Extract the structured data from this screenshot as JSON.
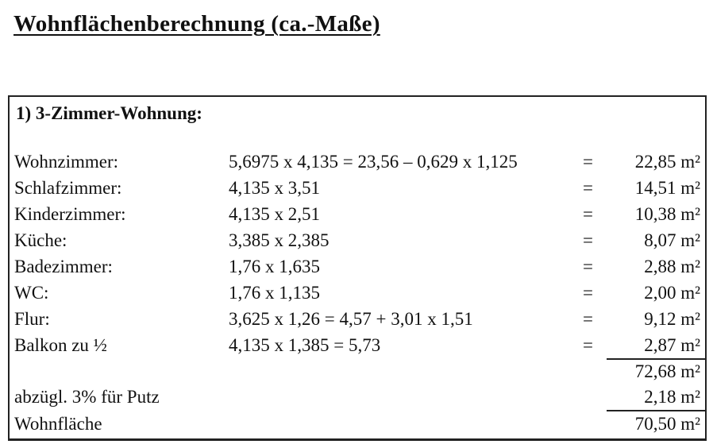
{
  "title": "Wohnflächenberechnung (ca.-Maße)",
  "section": {
    "heading": "1) 3-Zimmer-Wohnung:",
    "unit": "m²",
    "rooms": [
      {
        "label": "Wohnzimmer:",
        "formula": "5,6975 x 4,135  = 23,56 – 0,629 x 1,125",
        "eq": "=",
        "value": "22,85 m²"
      },
      {
        "label": "Schlafzimmer:",
        "formula": "4,135 x 3,51",
        "eq": "=",
        "value": "14,51 m²"
      },
      {
        "label": "Kinderzimmer:",
        "formula": "4,135 x 2,51",
        "eq": "=",
        "value": "10,38 m²"
      },
      {
        "label": "Küche:",
        "formula": "3,385 x 2,385",
        "eq": "=",
        "value": "8,07 m²"
      },
      {
        "label": "Badezimmer:",
        "formula": "1,76 x 1,635",
        "eq": "=",
        "value": "2,88 m²"
      },
      {
        "label": "WC:",
        "formula": "1,76 x 1,135",
        "eq": "=",
        "value": "2,00 m²"
      },
      {
        "label": "Flur:",
        "formula": "3,625 x 1,26 = 4,57 + 3,01 x 1,51",
        "eq": "=",
        "value": "9,12 m²"
      },
      {
        "label": "Balkon zu ½",
        "formula": "4,135 x 1,385 = 5,73",
        "eq": "=",
        "value": "2,87 m²"
      }
    ],
    "subtotal": "72,68 m²",
    "deduction": {
      "label": "abzügl. 3% für Putz",
      "value": "2,18 m²"
    },
    "total": {
      "label": "Wohnfläche",
      "value": "70,50 m²"
    }
  }
}
